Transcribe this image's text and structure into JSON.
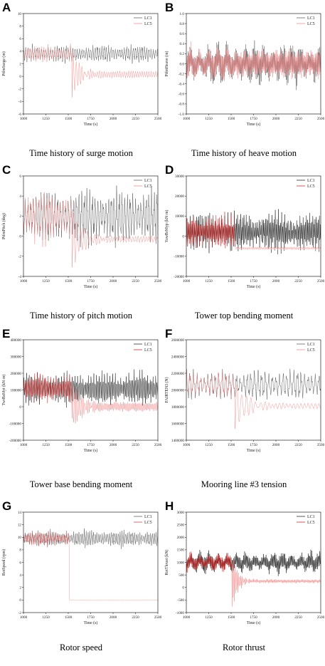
{
  "chart_data": [
    {
      "letter": "A",
      "caption": "Time history of surge motion",
      "type": "line",
      "xlabel": "Time (s)",
      "ylabel": "PtfmSurge (m)",
      "xlim": [
        1000,
        2500
      ],
      "ylim": [
        -6,
        10
      ],
      "xticks": [
        "1000",
        "1250",
        "1500",
        "1750",
        "2000",
        "2250",
        "2500"
      ],
      "yticks": [
        "-6",
        "-4",
        "-2",
        "0",
        "2",
        "4",
        "6",
        "8",
        "10"
      ],
      "legend": [
        "LC1",
        "LC5"
      ],
      "legend_position": "top-right",
      "event_time": 1540,
      "series": [
        {
          "name": "LC1",
          "color": "#505050",
          "mean": 3.6,
          "amp": 1.0,
          "period": 25
        },
        {
          "name": "LC5",
          "color": "#f08080",
          "mean": 3.6,
          "amp": 1.0,
          "period": 25,
          "after_mean": 0.3,
          "after_amp": 0.5,
          "spike": -4.0,
          "decay": 80
        }
      ]
    },
    {
      "letter": "B",
      "caption": "Time history of heave motion",
      "type": "line",
      "xlabel": "Time (s)",
      "ylabel": "PtfmHeave (m)",
      "xlim": [
        1000,
        2500
      ],
      "ylim": [
        -1.0,
        1.0
      ],
      "xticks": [
        "1000",
        "1250",
        "1500",
        "1750",
        "2000",
        "2250",
        "2500"
      ],
      "yticks": [
        "-1.0",
        "-0.8",
        "-0.6",
        "-0.4",
        "-0.2",
        "0.0",
        "0.2",
        "0.4",
        "0.6",
        "0.8",
        "1.0"
      ],
      "legend": [
        "LC1",
        "LC5"
      ],
      "legend_position": "top-right",
      "event_time": 1540,
      "series": [
        {
          "name": "LC1",
          "color": "#505050",
          "mean": 0.0,
          "amp": 0.32,
          "period": 10
        },
        {
          "name": "LC5",
          "color": "#f08080",
          "mean": 0.0,
          "amp": 0.28,
          "period": 10,
          "after_mean": 0.0,
          "after_amp": 0.26
        }
      ]
    },
    {
      "letter": "C",
      "caption": "Time history of pitch motion",
      "type": "line",
      "xlabel": "Time (s)",
      "ylabel": "PtfmPitch (deg)",
      "xlim": [
        1000,
        2500
      ],
      "ylim": [
        -4,
        6
      ],
      "xticks": [
        "1000",
        "1250",
        "1500",
        "1750",
        "2000",
        "2250",
        "2500"
      ],
      "yticks": [
        "-4",
        "-2",
        "0",
        "2",
        "4",
        "6"
      ],
      "legend": [
        "LC1",
        "LC5"
      ],
      "legend_position": "top-right",
      "event_time": 1540,
      "series": [
        {
          "name": "LC1",
          "color": "#505050",
          "mean": 2.0,
          "amp": 2.0,
          "period": 30
        },
        {
          "name": "LC5",
          "color": "#f08080",
          "mean": 2.0,
          "amp": 1.9,
          "period": 30,
          "after_mean": -0.3,
          "after_amp": 0.3,
          "spike": -3.2,
          "decay": 120
        }
      ]
    },
    {
      "letter": "D",
      "caption": "Tower top bending moment",
      "type": "line",
      "xlabel": "Time (s)",
      "ylabel": "YawBrMyp (kN·m)",
      "xlim": [
        1000,
        2500
      ],
      "ylim": [
        -20000,
        30000
      ],
      "xticks": [
        "1000",
        "1250",
        "1500",
        "1750",
        "2000",
        "2250",
        "2500"
      ],
      "yticks": [
        "-20000",
        "-10000",
        "0",
        "10000",
        "20000",
        "30000"
      ],
      "legend": [
        "LC1",
        "LC5"
      ],
      "legend_position": "top-right",
      "event_time": 1540,
      "series": [
        {
          "name": "LC1",
          "color": "#111111",
          "mean": 2000,
          "amp": 7500,
          "period": 12
        },
        {
          "name": "LC5",
          "color": "#cc1111",
          "mean": 2000,
          "amp": 7000,
          "period": 12,
          "after_mean": -6000,
          "after_amp": 700,
          "color_after": "#f5a0a0"
        }
      ]
    },
    {
      "letter": "E",
      "caption": "Tower base bending moment",
      "type": "line",
      "xlabel": "Time (s)",
      "ylabel": "TwrBsMyt (kN·m)",
      "xlim": [
        1000,
        2500
      ],
      "ylim": [
        -200000,
        400000
      ],
      "xticks": [
        "1000",
        "1250",
        "1500",
        "1750",
        "2000",
        "2250",
        "2500"
      ],
      "yticks": [
        "-200000",
        "-100000",
        "0",
        "100000",
        "200000",
        "300000",
        "400000"
      ],
      "legend": [
        "LC1",
        "LC5"
      ],
      "legend_position": "top-right",
      "event_time": 1540,
      "series": [
        {
          "name": "LC1",
          "color": "#111111",
          "mean": 110000,
          "amp": 75000,
          "period": 15
        },
        {
          "name": "LC5",
          "color": "#cc1111",
          "mean": 110000,
          "amp": 70000,
          "period": 15,
          "after_mean": 0,
          "after_amp": 25000,
          "spike": -150000,
          "decay": 100,
          "color_after": "#f08080"
        }
      ]
    },
    {
      "letter": "F",
      "caption": "Mooring line #3 tension",
      "type": "line",
      "xlabel": "Time (s)",
      "ylabel": "FAIRTEN3 (N)",
      "xlim": [
        1000,
        2500
      ],
      "ylim": [
        1400000,
        2600000
      ],
      "xticks": [
        "1000",
        "1250",
        "1500",
        "1750",
        "2000",
        "2250",
        "2500"
      ],
      "yticks": [
        "1400000",
        "1600000",
        "1800000",
        "2000000",
        "2200000",
        "2400000",
        "2600000"
      ],
      "legend": [
        "LC1",
        "LC5"
      ],
      "legend_position": "top-right",
      "event_time": 1540,
      "series": [
        {
          "name": "LC1",
          "color": "#505050",
          "mean": 2060000,
          "amp": 130000,
          "period": 40
        },
        {
          "name": "LC5",
          "color": "#f08080",
          "mean": 2060000,
          "amp": 110000,
          "period": 40,
          "after_mean": 1810000,
          "after_amp": 30000,
          "spike": 1530000,
          "decay": 140
        }
      ]
    },
    {
      "letter": "G",
      "caption": "Rotor speed",
      "type": "line",
      "xlabel": "Time (s)",
      "ylabel": "RotSpeed (rpm)",
      "xlim": [
        1000,
        2500
      ],
      "ylim": [
        -2,
        14
      ],
      "xticks": [
        "1000",
        "1250",
        "1500",
        "1750",
        "2000",
        "2250",
        "2500"
      ],
      "yticks": [
        "-2",
        "0",
        "2",
        "4",
        "6",
        "8",
        "10",
        "12",
        "14"
      ],
      "legend": [
        "LC1",
        "LC5"
      ],
      "legend_position": "top-right",
      "event_time": 1510,
      "series": [
        {
          "name": "LC1",
          "color": "#505050",
          "mean": 9.8,
          "amp": 1.0,
          "period": 20
        },
        {
          "name": "LC5",
          "color": "#d03030",
          "mean": 9.8,
          "amp": 0.9,
          "period": 20,
          "after_mean": 0.0,
          "after_amp": 0.05,
          "color_after": "#f08080"
        }
      ]
    },
    {
      "letter": "H",
      "caption": "Rotor thrust",
      "type": "line",
      "xlabel": "Time (s)",
      "ylabel": "RotThrust (kN)",
      "xlim": [
        1000,
        2500
      ],
      "ylim": [
        -1000,
        3000
      ],
      "xticks": [
        "1000",
        "1250",
        "1500",
        "1750",
        "2000",
        "2250",
        "2500"
      ],
      "yticks": [
        "-1000",
        "-500",
        "0",
        "500",
        "1000",
        "1500",
        "2000",
        "2500",
        "3000"
      ],
      "legend": [
        "LC1",
        "LC5"
      ],
      "legend_position": "top-right",
      "event_time": 1510,
      "series": [
        {
          "name": "LC1",
          "color": "#111111",
          "mean": 1000,
          "amp": 330,
          "period": 10
        },
        {
          "name": "LC5",
          "color": "#cc1111",
          "mean": 1000,
          "amp": 300,
          "period": 10,
          "after_mean": 250,
          "after_amp": 70,
          "spike": -900,
          "decay": 60,
          "color_after": "#f08080"
        }
      ]
    }
  ]
}
